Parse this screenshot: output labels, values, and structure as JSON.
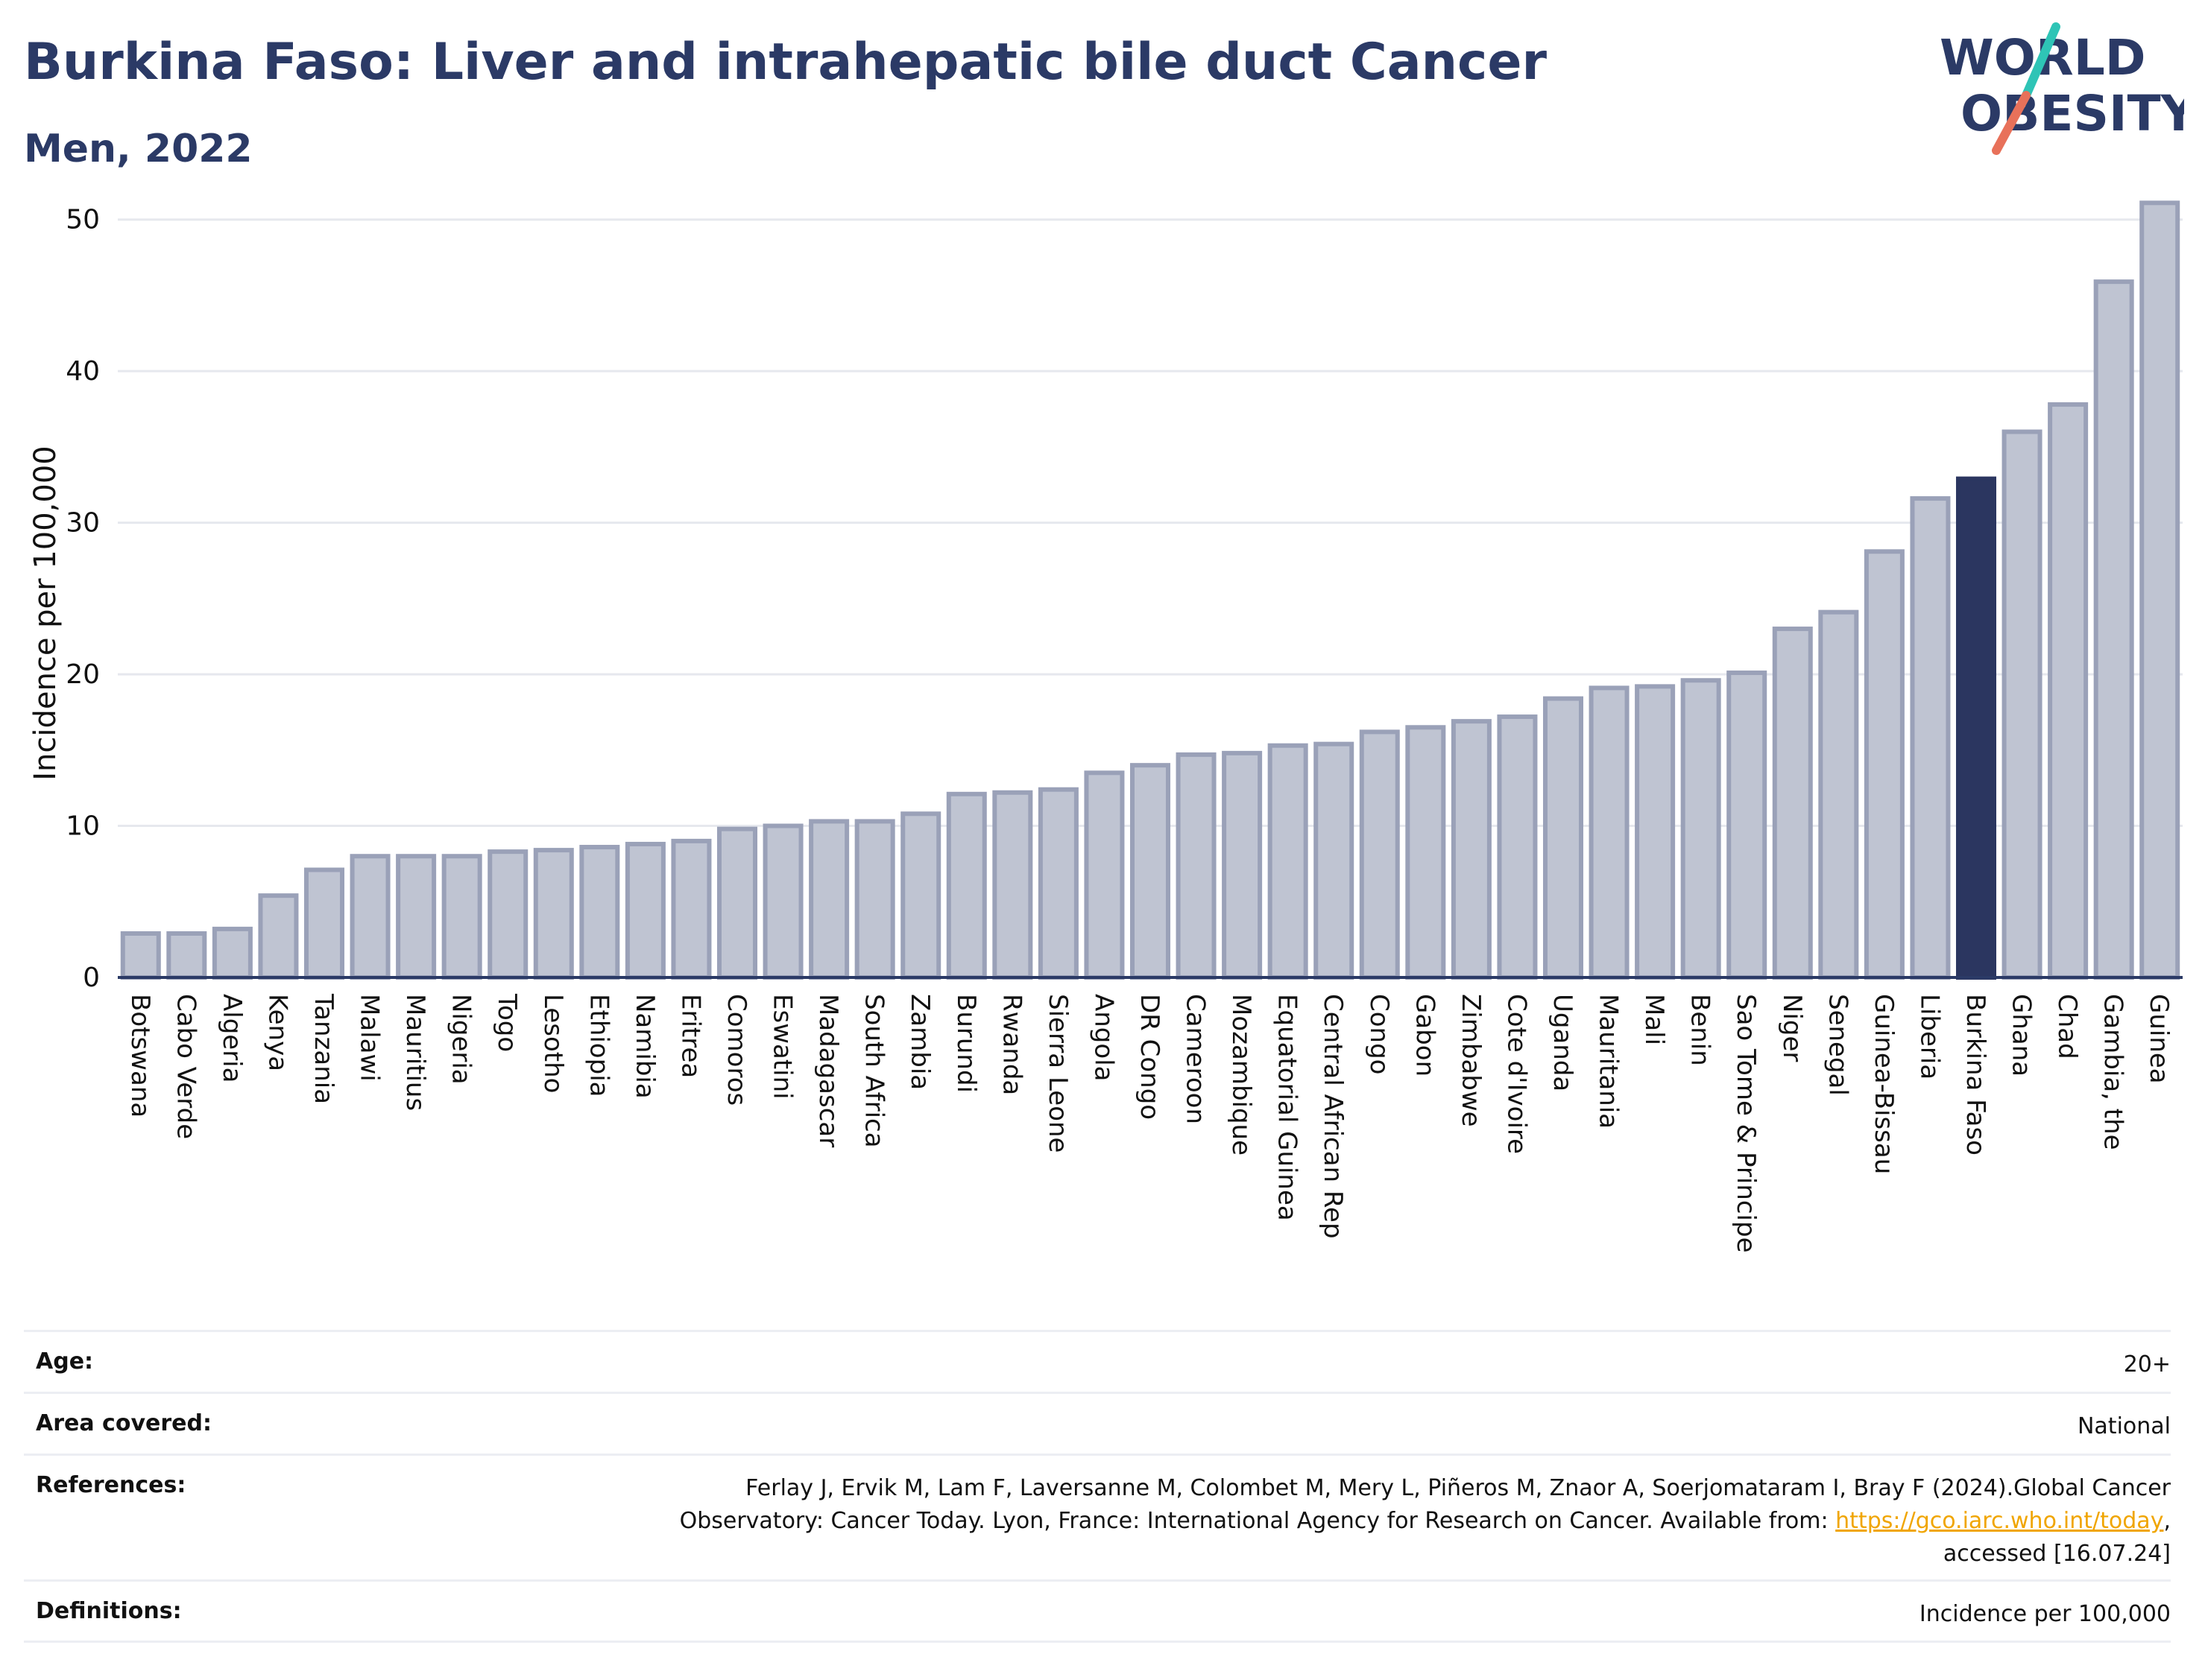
{
  "header": {
    "title": "Burkina Faso: Liver and intrahepatic bile duct Cancer",
    "subtitle": "Men, 2022"
  },
  "logo": {
    "line1": "WORLD",
    "line2": "OBESITY",
    "accent_teal": "#2ec4b6",
    "accent_coral": "#e8715a",
    "text_color": "#2b3a66"
  },
  "chart_data": {
    "type": "bar",
    "ylabel": "Incidence per 100,000",
    "ylim": [
      0,
      52
    ],
    "yticks": [
      0,
      10,
      20,
      30,
      40,
      50
    ],
    "grid": true,
    "highlight": "Burkina Faso",
    "colors": {
      "bar": "#bfc4d2",
      "bar_edge": "#9aa1b8",
      "highlight": "#2b3660"
    },
    "categories": [
      "Botswana",
      "Cabo Verde",
      "Algeria",
      "Kenya",
      "Tanzania",
      "Malawi",
      "Mauritius",
      "Nigeria",
      "Togo",
      "Lesotho",
      "Ethiopia",
      "Namibia",
      "Eritrea",
      "Comoros",
      "Eswatini",
      "Madagascar",
      "South Africa",
      "Zambia",
      "Burundi",
      "Rwanda",
      "Sierra Leone",
      "Angola",
      "DR Congo",
      "Cameroon",
      "Mozambique",
      "Equatorial Guinea",
      "Central African Rep",
      "Congo",
      "Gabon",
      "Zimbabwe",
      "Cote d'Ivoire",
      "Uganda",
      "Mauritania",
      "Mali",
      "Benin",
      "Sao Tome & Principe",
      "Niger",
      "Senegal",
      "Guinea-Bissau",
      "Liberia",
      "Burkina Faso",
      "Ghana",
      "Chad",
      "Gambia, the",
      "Guinea"
    ],
    "values": [
      2.9,
      2.9,
      3.2,
      5.4,
      7.1,
      8.0,
      8.0,
      8.0,
      8.3,
      8.4,
      8.6,
      8.8,
      9.0,
      9.8,
      10.0,
      10.3,
      10.3,
      10.8,
      12.1,
      12.2,
      12.4,
      13.5,
      14.0,
      14.7,
      14.8,
      15.3,
      15.4,
      16.2,
      16.5,
      16.9,
      17.2,
      18.4,
      19.1,
      19.2,
      19.6,
      20.1,
      23.0,
      24.1,
      28.1,
      31.6,
      32.9,
      36.0,
      37.8,
      45.9,
      51.1
    ]
  },
  "metadata": {
    "age_label": "Age:",
    "age_value": "20+",
    "area_label": "Area covered:",
    "area_value": "National",
    "refs_label": "References:",
    "refs_line1": "Ferlay J, Ervik M, Lam F, Laversanne M, Colombet M, Mery L, Piñeros M, Znaor A, Soerjomataram I, Bray F (2024).Global Cancer",
    "refs_line2_pre": "Observatory: Cancer Today. Lyon, France: International Agency for Research on Cancer. Available from: ",
    "refs_link": "https://gco.iarc.who.int/today",
    "refs_line2_post": ",",
    "refs_line3": "accessed [16.07.24]",
    "defs_label": "Definitions:",
    "defs_value": "Incidence per 100,000"
  }
}
